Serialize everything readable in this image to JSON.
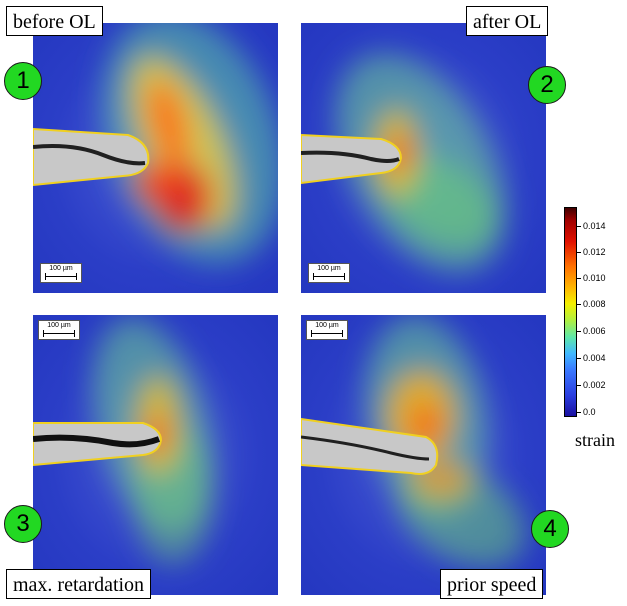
{
  "panels": [
    {
      "label": "before OL",
      "number": "1",
      "scale": "100 µm"
    },
    {
      "label": "after OL",
      "number": "2",
      "scale": "100 µm"
    },
    {
      "label": "max. retardation",
      "number": "3",
      "scale": "100 µm"
    },
    {
      "label": "prior speed",
      "number": "4",
      "scale": "100 µm"
    }
  ],
  "colorbar": {
    "ticks": [
      "0.014",
      "0.012",
      "0.010",
      "0.008",
      "0.006",
      "0.004",
      "0.002",
      "0.0"
    ],
    "caption": "strain"
  },
  "colors": {
    "badge": "#22d822",
    "background_field": "#2b3ec7"
  }
}
